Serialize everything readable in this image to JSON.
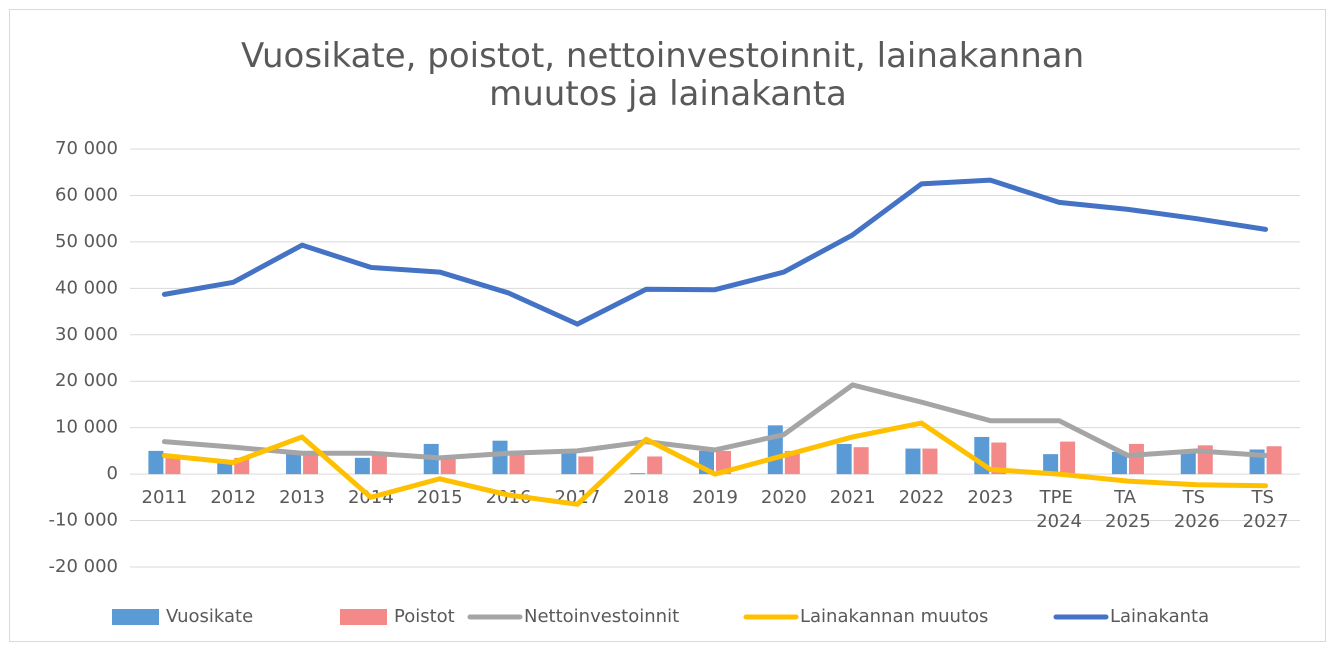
{
  "chart_data": {
    "type": "bar-line",
    "title": "Vuosikate, poistot, nettoinvestoinnit, lainakannan muutos ja lainakanta",
    "categories": [
      "2011",
      "2012",
      "2013",
      "2014",
      "2015",
      "2016",
      "2017",
      "2018",
      "2019",
      "2020",
      "2021",
      "2022",
      "2023",
      "TPE 2024",
      "TA 2025",
      "TS 2026",
      "TS 2027"
    ],
    "series": [
      {
        "name": "Vuosikate",
        "type": "bar",
        "color": "#5b9bd5",
        "values": [
          5000,
          2500,
          4500,
          3500,
          6500,
          7200,
          4500,
          200,
          5000,
          10500,
          6500,
          5500,
          8000,
          4300,
          4800,
          4800,
          5300
        ]
      },
      {
        "name": "Poistot",
        "type": "bar",
        "color": "#f4898a",
        "values": [
          4000,
          3500,
          4500,
          4000,
          3500,
          4500,
          3800,
          3800,
          5000,
          5000,
          5800,
          5500,
          6800,
          7000,
          6500,
          6200,
          6000
        ]
      },
      {
        "name": "Nettoinvestoinnit",
        "type": "line",
        "color": "#a5a5a5",
        "values": [
          7000,
          5800,
          4500,
          4500,
          3500,
          4500,
          5000,
          7000,
          5200,
          8500,
          19200,
          15500,
          11500,
          11500,
          4000,
          5000,
          4000
        ]
      },
      {
        "name": "Lainakannan muutos",
        "type": "line",
        "color": "#ffc000",
        "values": [
          4000,
          2500,
          8000,
          -5000,
          -1000,
          -4500,
          -6500,
          7500,
          0,
          4000,
          8000,
          11000,
          1000,
          0,
          -1500,
          -2300,
          -2500
        ]
      },
      {
        "name": "Lainakanta",
        "type": "line",
        "color": "#4472c4",
        "values": [
          38700,
          41300,
          49300,
          44500,
          43500,
          39000,
          32300,
          39800,
          39700,
          43500,
          51500,
          62500,
          63300,
          58500,
          57000,
          55000,
          52700
        ]
      }
    ],
    "ylim": [
      -20000,
      70000
    ],
    "yticks": [
      {
        "value": -20000,
        "label": "-20 000"
      },
      {
        "value": -10000,
        "label": "-10 000"
      },
      0,
      {
        "value": 10000,
        "label": "10 000"
      },
      {
        "value": 20000,
        "label": "20 000"
      },
      {
        "value": 30000,
        "label": "30 000"
      },
      {
        "value": 40000,
        "label": "40 000"
      },
      {
        "value": 50000,
        "label": "50 000"
      },
      {
        "value": 60000,
        "label": "60 000"
      },
      {
        "value": 70000,
        "label": "70 000"
      }
    ],
    "grid": true,
    "legend": "bottom"
  }
}
